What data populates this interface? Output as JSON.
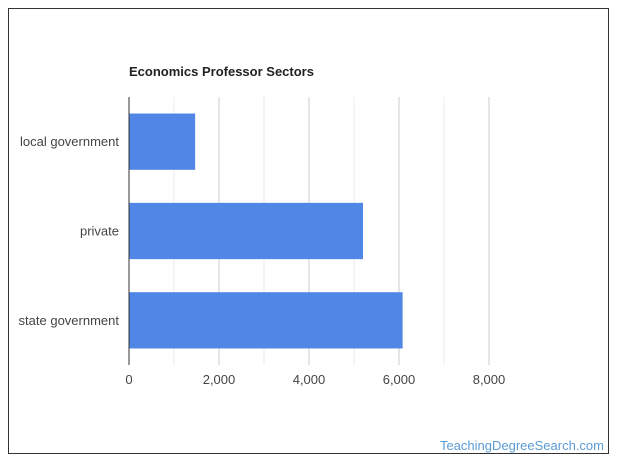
{
  "chart_data": {
    "type": "bar",
    "orientation": "horizontal",
    "title": "Economics Professor Sectors",
    "categories": [
      "local government",
      "private",
      "state government"
    ],
    "values": [
      1470,
      5200,
      6080
    ],
    "xlim": [
      0,
      8000
    ],
    "x_ticks": [
      0,
      2000,
      4000,
      6000,
      8000
    ],
    "x_tick_labels": [
      "0",
      "2,000",
      "4,000",
      "6,000",
      "8,000"
    ],
    "bar_color": "#5086e6",
    "grid": true,
    "legend": "none"
  },
  "watermark": "TeachingDegreeSearch.com"
}
